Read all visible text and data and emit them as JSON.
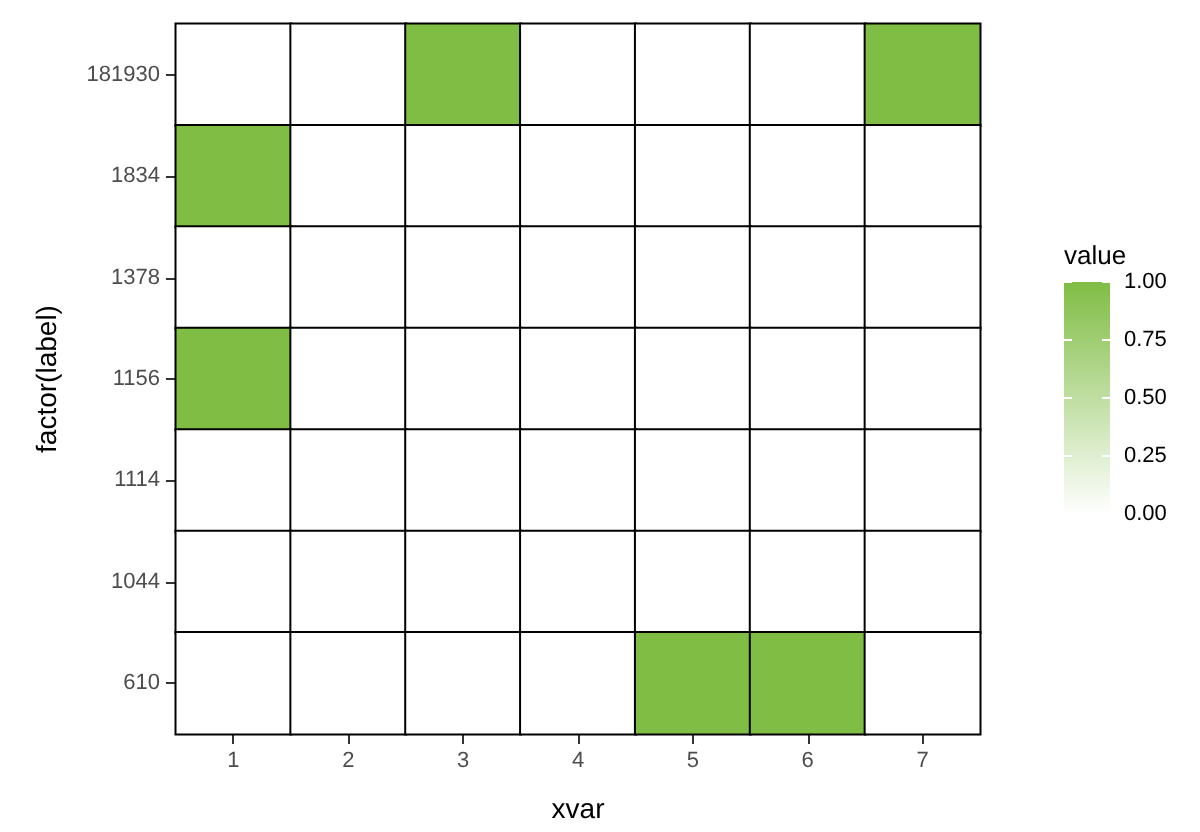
{
  "chart_data": {
    "type": "heatmap",
    "xlabel": "xvar",
    "ylabel": "factor(label)",
    "clabel": "value",
    "categories": [
      "1",
      "2",
      "3",
      "4",
      "5",
      "6",
      "7"
    ],
    "y_categories": [
      "181930",
      "1834",
      "1378",
      "1156",
      "1114",
      "1044",
      "610"
    ],
    "cells": [
      [
        0,
        0,
        1,
        0,
        0,
        0,
        1
      ],
      [
        1,
        0,
        0,
        0,
        0,
        0,
        0
      ],
      [
        0,
        0,
        0,
        0,
        0,
        0,
        0
      ],
      [
        1,
        0,
        0,
        0,
        0,
        0,
        0
      ],
      [
        0,
        0,
        0,
        0,
        0,
        0,
        0
      ],
      [
        0,
        0,
        0,
        0,
        0,
        0,
        0
      ],
      [
        0,
        0,
        0,
        0,
        1,
        1,
        0
      ]
    ],
    "color": "#80bd44",
    "clim": [
      0,
      1
    ],
    "cticks": [
      {
        "value": 0,
        "label": "0.00"
      },
      {
        "value": 0.25,
        "label": "0.25"
      },
      {
        "value": 0.5,
        "label": "0.50"
      },
      {
        "value": 0.75,
        "label": "0.75"
      },
      {
        "value": 1,
        "label": "1.00"
      }
    ]
  }
}
